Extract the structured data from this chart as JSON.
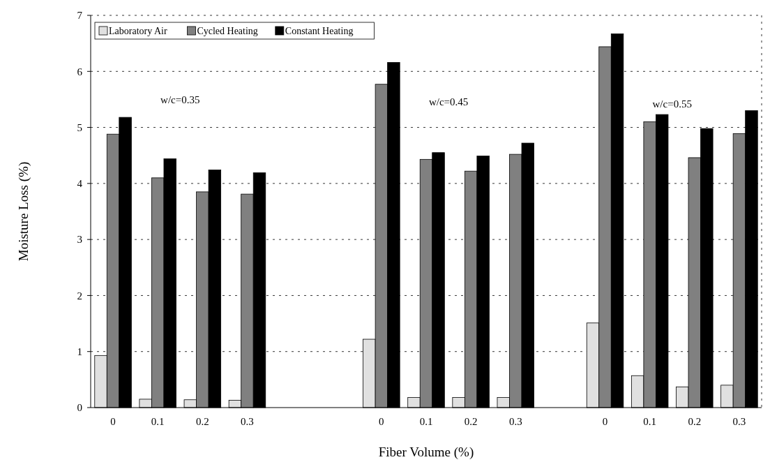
{
  "chart_data": {
    "type": "bar",
    "xlabel": "Fiber Volume (%)",
    "ylabel": "Moisture Loss (%)",
    "categories": [
      "0",
      "0.1",
      "0.2",
      "0.3",
      null,
      null,
      "0",
      "0.1",
      "0.2",
      "0.3",
      null,
      "0",
      "0.1",
      "0.2",
      "0.3"
    ],
    "series": [
      {
        "name": "Laboratory Air",
        "color": "#e0e0e0",
        "values": [
          0.93,
          0.15,
          0.14,
          0.13,
          null,
          null,
          1.22,
          0.18,
          0.18,
          0.18,
          null,
          1.51,
          0.57,
          0.37,
          0.4
        ]
      },
      {
        "name": "Cycled Heating",
        "color": "#808080",
        "values": [
          4.88,
          4.1,
          3.85,
          3.81,
          null,
          null,
          5.77,
          4.43,
          4.22,
          4.52,
          null,
          6.44,
          5.1,
          4.46,
          4.89
        ]
      },
      {
        "name": "Constant Heating",
        "color": "#000000",
        "values": [
          5.18,
          4.44,
          4.24,
          4.19,
          null,
          null,
          6.16,
          4.55,
          4.49,
          4.72,
          null,
          6.67,
          5.23,
          4.98,
          5.3
        ]
      }
    ],
    "ylim": [
      0,
      7
    ],
    "yticks": [
      0,
      1,
      2,
      3,
      4,
      5,
      6,
      7
    ],
    "grid": "y",
    "legend": "top left",
    "annotations": [
      "w/c=0.35",
      "w/c=0.45",
      "w/c=0.55"
    ]
  }
}
